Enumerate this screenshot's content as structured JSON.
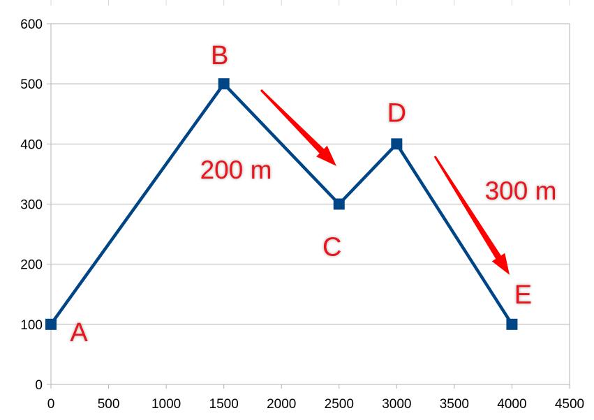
{
  "chart_data": {
    "type": "line",
    "title": "",
    "xlabel": "",
    "ylabel": "",
    "xlim": [
      0,
      4500
    ],
    "ylim": [
      0,
      600
    ],
    "x_ticks": [
      0,
      500,
      1000,
      1500,
      2000,
      2500,
      3000,
      3500,
      4000,
      4500
    ],
    "y_ticks": [
      0,
      100,
      200,
      300,
      400,
      500,
      600
    ],
    "grid": true,
    "legend": "none",
    "series": [
      {
        "x": [
          0,
          1500,
          2500,
          3000,
          4000
        ],
        "y": [
          100,
          500,
          300,
          400,
          100
        ],
        "marker": "square",
        "color": "#004586"
      }
    ],
    "point_labels": [
      {
        "text": "A",
        "x": 0,
        "y": 100
      },
      {
        "text": "B",
        "x": 1500,
        "y": 500
      },
      {
        "text": "C",
        "x": 2500,
        "y": 300
      },
      {
        "text": "D",
        "x": 3000,
        "y": 400
      },
      {
        "text": "E",
        "x": 4000,
        "y": 100
      }
    ],
    "annotations": [
      {
        "text": "200 m",
        "between": [
          "B",
          "C"
        ],
        "color": "#e8141b"
      },
      {
        "text": "300 m",
        "between": [
          "D",
          "E"
        ],
        "color": "#e8141b"
      }
    ],
    "colors": {
      "line": "#004586",
      "labels": "#e8141b",
      "arrows": "#ff0000",
      "grid": "#b3b3b3"
    }
  }
}
